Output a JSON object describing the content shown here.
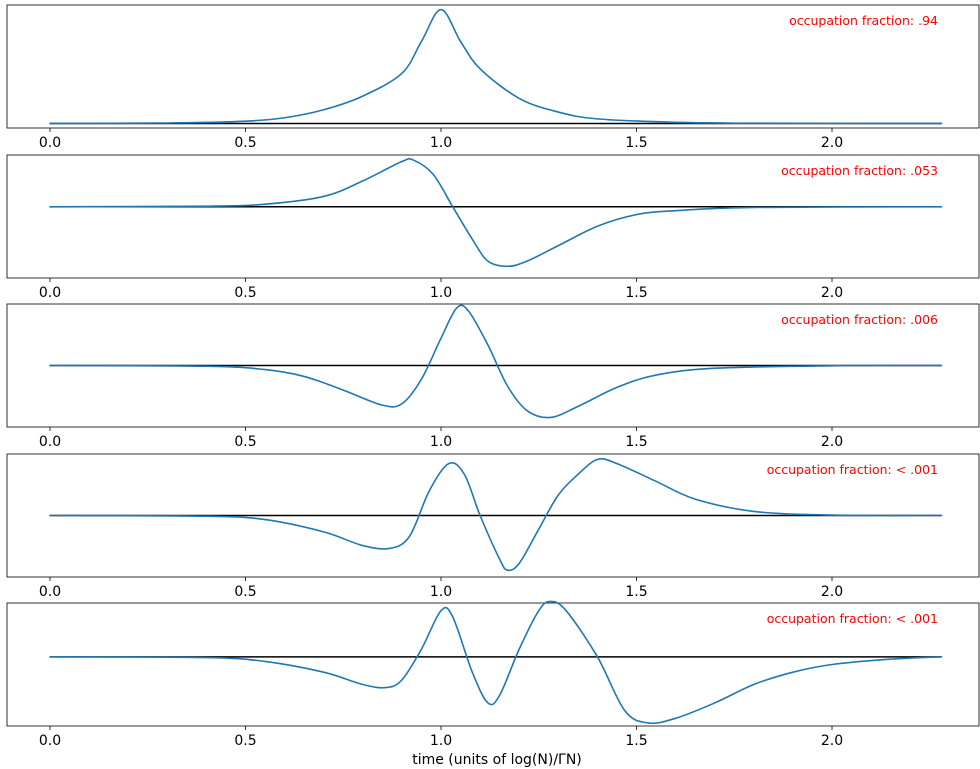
{
  "chart_data": {
    "type": "line",
    "xlabel": "time (units of log(N)/ΓN)",
    "xlim": [
      -0.1,
      2.38
    ],
    "x_ticks": [
      0.0,
      0.5,
      1.0,
      1.5,
      2.0
    ],
    "x_tick_labels": [
      "0.0",
      "0.5",
      "1.0",
      "1.5",
      "2.0"
    ],
    "grid": false,
    "colors": {
      "curve": "#1f77b4",
      "baseline": "#000000",
      "annotation": "#ff0000"
    },
    "panels": [
      {
        "annotation": "occupation fraction: .94",
        "baseline": 0,
        "ylim": [
          -0.02,
          0.52
        ],
        "points": [
          [
            0.0,
            0.0
          ],
          [
            0.3,
            0.002
          ],
          [
            0.5,
            0.01
          ],
          [
            0.6,
            0.025
          ],
          [
            0.7,
            0.06
          ],
          [
            0.8,
            0.12
          ],
          [
            0.9,
            0.22
          ],
          [
            0.95,
            0.36
          ],
          [
            1.0,
            0.5
          ],
          [
            1.05,
            0.36
          ],
          [
            1.1,
            0.24
          ],
          [
            1.2,
            0.11
          ],
          [
            1.3,
            0.05
          ],
          [
            1.4,
            0.02
          ],
          [
            1.6,
            0.005
          ],
          [
            1.8,
            0.001
          ],
          [
            2.28,
            0.0
          ]
        ]
      },
      {
        "annotation": "occupation fraction: .053",
        "baseline": 0,
        "ylim": [
          -0.55,
          0.4
        ],
        "points": [
          [
            0.0,
            0.0
          ],
          [
            0.4,
            0.005
          ],
          [
            0.55,
            0.02
          ],
          [
            0.7,
            0.08
          ],
          [
            0.8,
            0.2
          ],
          [
            0.9,
            0.35
          ],
          [
            0.93,
            0.36
          ],
          [
            0.98,
            0.25
          ],
          [
            1.03,
            0.0
          ],
          [
            1.08,
            -0.25
          ],
          [
            1.12,
            -0.42
          ],
          [
            1.17,
            -0.46
          ],
          [
            1.22,
            -0.42
          ],
          [
            1.3,
            -0.3
          ],
          [
            1.4,
            -0.15
          ],
          [
            1.5,
            -0.06
          ],
          [
            1.6,
            -0.03
          ],
          [
            1.8,
            -0.005
          ],
          [
            2.28,
            0.0
          ]
        ]
      },
      {
        "annotation": "occupation fraction: .006",
        "baseline": 0,
        "ylim": [
          -0.45,
          0.45
        ],
        "points": [
          [
            0.0,
            0.0
          ],
          [
            0.4,
            -0.005
          ],
          [
            0.55,
            -0.03
          ],
          [
            0.65,
            -0.08
          ],
          [
            0.75,
            -0.18
          ],
          [
            0.85,
            -0.29
          ],
          [
            0.9,
            -0.28
          ],
          [
            0.95,
            -0.1
          ],
          [
            1.0,
            0.2
          ],
          [
            1.04,
            0.42
          ],
          [
            1.07,
            0.4
          ],
          [
            1.12,
            0.15
          ],
          [
            1.17,
            -0.15
          ],
          [
            1.22,
            -0.33
          ],
          [
            1.28,
            -0.38
          ],
          [
            1.35,
            -0.3
          ],
          [
            1.45,
            -0.16
          ],
          [
            1.55,
            -0.07
          ],
          [
            1.7,
            -0.02
          ],
          [
            2.0,
            -0.002
          ],
          [
            2.28,
            0.0
          ]
        ]
      },
      {
        "annotation": "occupation fraction: < .001",
        "baseline": 0,
        "ylim": [
          -0.45,
          0.45
        ],
        "points": [
          [
            0.0,
            0.0
          ],
          [
            0.4,
            -0.005
          ],
          [
            0.55,
            -0.03
          ],
          [
            0.7,
            -0.12
          ],
          [
            0.8,
            -0.22
          ],
          [
            0.87,
            -0.24
          ],
          [
            0.92,
            -0.15
          ],
          [
            0.97,
            0.18
          ],
          [
            1.02,
            0.38
          ],
          [
            1.06,
            0.3
          ],
          [
            1.1,
            0.0
          ],
          [
            1.15,
            -0.32
          ],
          [
            1.17,
            -0.4
          ],
          [
            1.2,
            -0.35
          ],
          [
            1.25,
            -0.1
          ],
          [
            1.3,
            0.15
          ],
          [
            1.35,
            0.3
          ],
          [
            1.4,
            0.41
          ],
          [
            1.45,
            0.38
          ],
          [
            1.55,
            0.25
          ],
          [
            1.65,
            0.12
          ],
          [
            1.8,
            0.03
          ],
          [
            2.0,
            0.003
          ],
          [
            2.28,
            0.0
          ]
        ]
      },
      {
        "annotation": "occupation fraction: < .001",
        "baseline": 0,
        "ylim": [
          -0.45,
          0.35
        ],
        "points": [
          [
            0.0,
            0.0
          ],
          [
            0.4,
            -0.005
          ],
          [
            0.55,
            -0.03
          ],
          [
            0.7,
            -0.1
          ],
          [
            0.8,
            -0.18
          ],
          [
            0.86,
            -0.2
          ],
          [
            0.9,
            -0.15
          ],
          [
            0.95,
            0.05
          ],
          [
            1.0,
            0.3
          ],
          [
            1.03,
            0.26
          ],
          [
            1.08,
            -0.1
          ],
          [
            1.12,
            -0.3
          ],
          [
            1.15,
            -0.25
          ],
          [
            1.2,
            0.05
          ],
          [
            1.25,
            0.3
          ],
          [
            1.28,
            0.36
          ],
          [
            1.32,
            0.3
          ],
          [
            1.4,
            0.0
          ],
          [
            1.47,
            -0.35
          ],
          [
            1.53,
            -0.43
          ],
          [
            1.6,
            -0.4
          ],
          [
            1.7,
            -0.3
          ],
          [
            1.8,
            -0.18
          ],
          [
            1.9,
            -0.1
          ],
          [
            2.0,
            -0.05
          ],
          [
            2.15,
            -0.015
          ],
          [
            2.28,
            0.0
          ]
        ]
      }
    ]
  }
}
